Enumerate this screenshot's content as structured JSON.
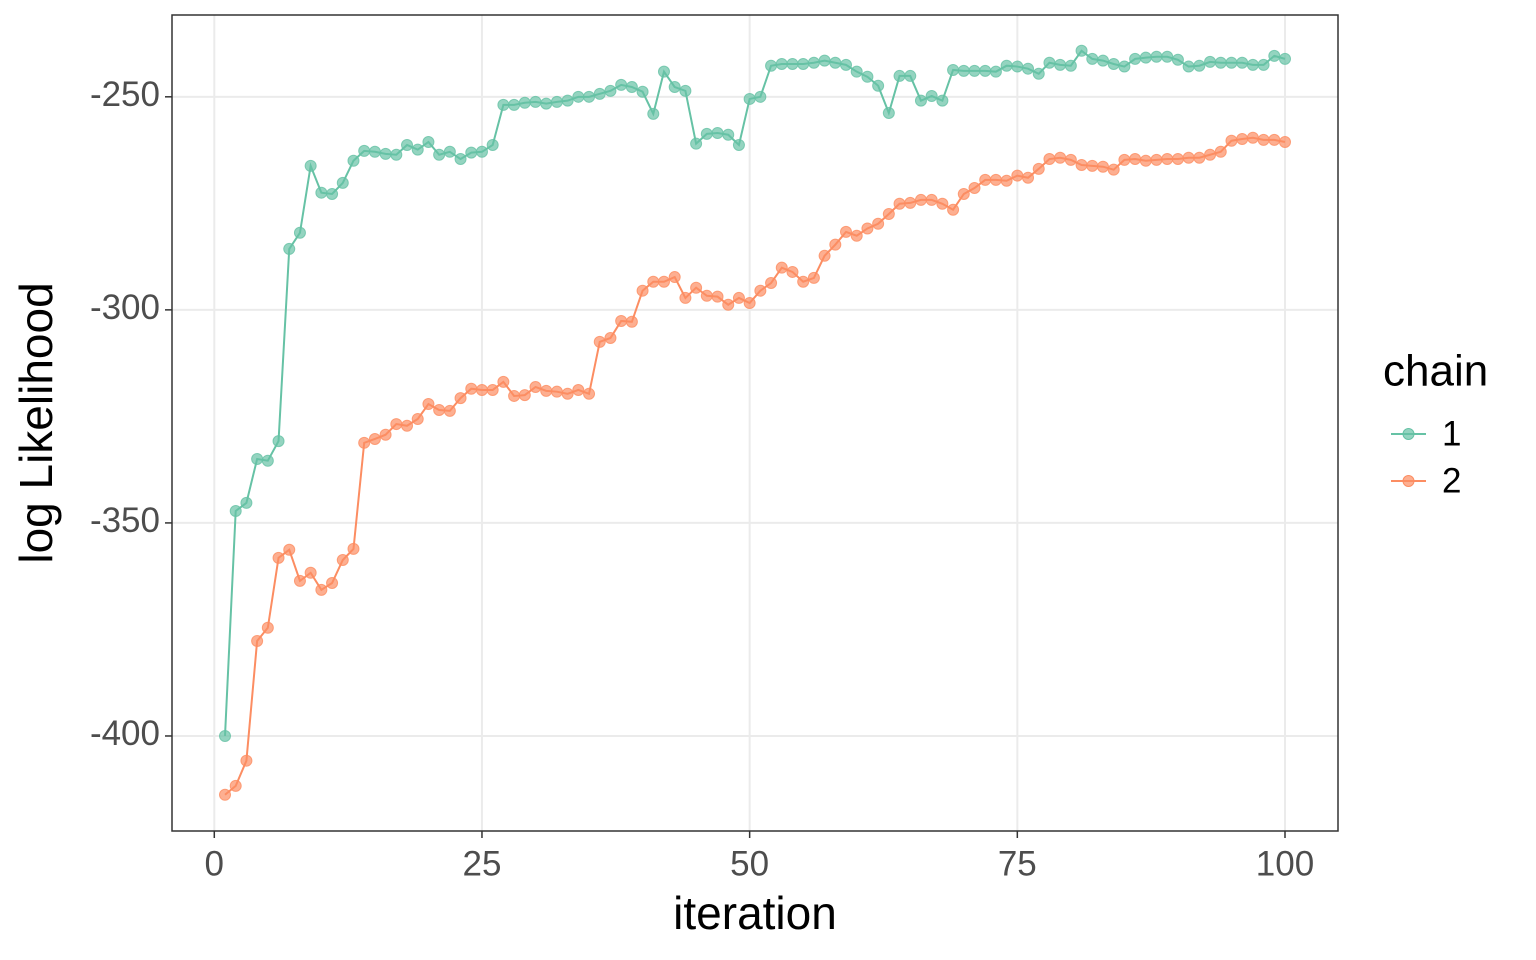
{
  "chart_data": {
    "type": "line",
    "x_label": "iteration",
    "y_label": "log Likelihood",
    "legend_title": "chain",
    "legend_position": "right",
    "grid": true,
    "xlim": [
      -3.95,
      104.95
    ],
    "xticks": [
      0,
      25,
      50,
      75,
      100
    ],
    "ylim": [
      -422.3,
      -230.8
    ],
    "yticks": [
      -250,
      -300,
      -350,
      -400
    ],
    "x": [
      1,
      2,
      3,
      4,
      5,
      6,
      7,
      8,
      9,
      10,
      11,
      12,
      13,
      14,
      15,
      16,
      17,
      18,
      19,
      20,
      21,
      22,
      23,
      24,
      25,
      26,
      27,
      28,
      29,
      30,
      31,
      32,
      33,
      34,
      35,
      36,
      37,
      38,
      39,
      40,
      41,
      42,
      43,
      44,
      45,
      46,
      47,
      48,
      49,
      50,
      51,
      52,
      53,
      54,
      55,
      56,
      57,
      58,
      59,
      60,
      61,
      62,
      63,
      64,
      65,
      66,
      67,
      68,
      69,
      70,
      71,
      72,
      73,
      74,
      75,
      76,
      77,
      78,
      79,
      80,
      81,
      82,
      83,
      84,
      85,
      86,
      87,
      88,
      89,
      90,
      91,
      92,
      93,
      94,
      95,
      96,
      97,
      98,
      99,
      100
    ],
    "series": [
      {
        "name": "1",
        "color": "#66c2a5",
        "values": [
          -400,
          -347.2,
          -345.3,
          -335,
          -335.4,
          -330.8,
          -285.7,
          -281.9,
          -266.2,
          -272.5,
          -272.8,
          -270.2,
          -265,
          -262.7,
          -262.9,
          -263.4,
          -263.6,
          -261.3,
          -262.4,
          -260.6,
          -263.6,
          -262.9,
          -264.6,
          -263.1,
          -262.9,
          -261.3,
          -251.9,
          -251.9,
          -251.4,
          -251.2,
          -251.6,
          -251.2,
          -250.9,
          -250,
          -250,
          -249.3,
          -248.6,
          -247.2,
          -247.7,
          -248.8,
          -254,
          -244.1,
          -247.7,
          -248.6,
          -261,
          -258.7,
          -258.5,
          -258.9,
          -261.3,
          -250.5,
          -250,
          -242.7,
          -242.3,
          -242.3,
          -242.3,
          -242,
          -241.5,
          -242,
          -242.5,
          -244.1,
          -245.3,
          -247.4,
          -253.8,
          -245.1,
          -245.1,
          -250.9,
          -249.8,
          -250.9,
          -243.7,
          -243.9,
          -243.9,
          -243.9,
          -244.1,
          -242.7,
          -242.9,
          -243.4,
          -244.6,
          -242,
          -242.5,
          -242.7,
          -239.2,
          -241.1,
          -241.5,
          -242.3,
          -242.9,
          -241.1,
          -240.8,
          -240.6,
          -240.6,
          -241.3,
          -242.9,
          -242.7,
          -241.8,
          -242,
          -242,
          -242,
          -242.5,
          -242.5,
          -240.4,
          -241.1
        ]
      },
      {
        "name": "2",
        "color": "#fc8d62",
        "values": [
          -413.8,
          -411.7,
          -405.8,
          -377.7,
          -374.6,
          -358.2,
          -356.3,
          -363.6,
          -361.7,
          -365.7,
          -364.1,
          -358.7,
          -356.1,
          -331.2,
          -330.3,
          -329.3,
          -326.8,
          -327.2,
          -325.6,
          -322.1,
          -323.5,
          -323.7,
          -320.7,
          -318.5,
          -318.8,
          -318.8,
          -316.9,
          -320.2,
          -320,
          -318.1,
          -319,
          -319.2,
          -319.7,
          -318.8,
          -319.7,
          -307.5,
          -306.6,
          -302.6,
          -302.8,
          -295.5,
          -293.4,
          -293.4,
          -292.3,
          -297.2,
          -294.8,
          -296.7,
          -296.9,
          -298.8,
          -297.2,
          -298.4,
          -295.5,
          -293.7,
          -290.1,
          -291.1,
          -293.4,
          -292.5,
          -287.3,
          -284.7,
          -281.7,
          -282.6,
          -280.9,
          -279.8,
          -277.5,
          -275.1,
          -274.9,
          -274.2,
          -274.2,
          -275.1,
          -276.5,
          -272.8,
          -271.4,
          -269.5,
          -269.5,
          -269.7,
          -268.5,
          -269,
          -266.9,
          -264.6,
          -264.3,
          -264.8,
          -266,
          -266.2,
          -266.4,
          -267.1,
          -264.8,
          -264.6,
          -265,
          -264.8,
          -264.6,
          -264.6,
          -264.3,
          -264.3,
          -263.6,
          -262.9,
          -260.3,
          -259.9,
          -259.6,
          -260.1,
          -260.1,
          -260.6
        ]
      }
    ]
  }
}
